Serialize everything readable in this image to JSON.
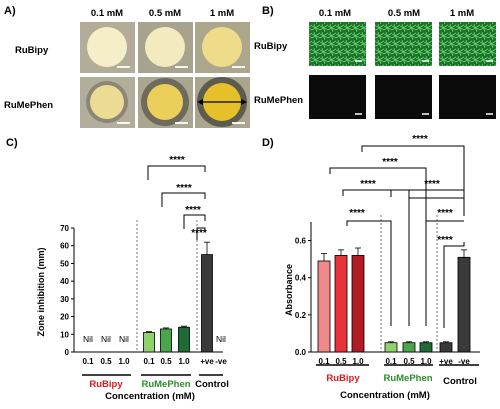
{
  "panel_a": {
    "letter": "A)",
    "col_headers": [
      "0.1 mM",
      "0.5 mM",
      "1 mM"
    ],
    "row_labels": [
      "RuBipy",
      "RuMePhen"
    ],
    "well_colors": [
      [
        "#f6eec9",
        "#f4eabf",
        "#efdc8a"
      ],
      [
        "#ecdc93",
        "#ebcf5a",
        "#e6c02b"
      ]
    ]
  },
  "panel_b": {
    "letter": "B)",
    "col_headers": [
      "0.1 mM",
      "0.5 mM",
      "1 mM"
    ],
    "row_labels": [
      "RuBipy",
      "RuMePhen"
    ],
    "tile_colors": [
      "#2d8a3a",
      "#0a0a0a"
    ]
  },
  "colors": {
    "light_green": "#8fd16a",
    "mid_green": "#4aa64a",
    "dark_green": "#1f6b35",
    "control_gray": "#3a3a3a",
    "pink": "#f08a8a",
    "red": "#e8323a",
    "dark_red": "#b21a24",
    "label_red": "#e0181e",
    "label_green": "#2e8b2e"
  },
  "chart_data": [
    {
      "panel": "C)",
      "type": "bar",
      "categories": [
        "0.1",
        "0.5",
        "1.0",
        "0.1",
        "0.5",
        "1.0",
        "+ve",
        "-ve"
      ],
      "values": [
        0,
        0,
        0,
        11,
        13,
        14,
        55,
        0
      ],
      "errors": [
        0,
        0,
        0,
        0.5,
        0.6,
        0.6,
        7,
        0
      ],
      "value_labels": [
        "Nil",
        "Nil",
        "Nil",
        "",
        "",
        "",
        "",
        "Nil"
      ],
      "ylabel": "Zone inhibition (mm)",
      "xlabel": "Concentration (mM)",
      "ylim": [
        0,
        70
      ],
      "yticks": [
        0,
        10,
        20,
        30,
        40,
        50,
        60,
        70
      ],
      "groups": [
        "RuBipy",
        "RuMePhen",
        "Control"
      ],
      "significance": [
        "****",
        "****",
        "****",
        "****"
      ]
    },
    {
      "panel": "D)",
      "type": "bar",
      "categories": [
        "0.1",
        "0.5",
        "1.0",
        "0.1",
        "0.5",
        "1.0",
        "+ve",
        "-ve"
      ],
      "values": [
        0.49,
        0.52,
        0.52,
        0.05,
        0.05,
        0.05,
        0.05,
        0.51
      ],
      "errors": [
        0.04,
        0.03,
        0.04,
        0.005,
        0.005,
        0.005,
        0.005,
        0.04
      ],
      "ylabel": "Absorbance",
      "xlabel": "Concentration (mM)",
      "ylim": [
        0,
        0.7
      ],
      "yticks": [
        "0.0",
        "0.2",
        "0.4",
        "0.6"
      ],
      "groups": [
        "RuBipy",
        "RuMePhen",
        "Control"
      ],
      "significance": [
        "****",
        "****",
        "****",
        "****",
        "****",
        "****",
        "****"
      ]
    }
  ]
}
